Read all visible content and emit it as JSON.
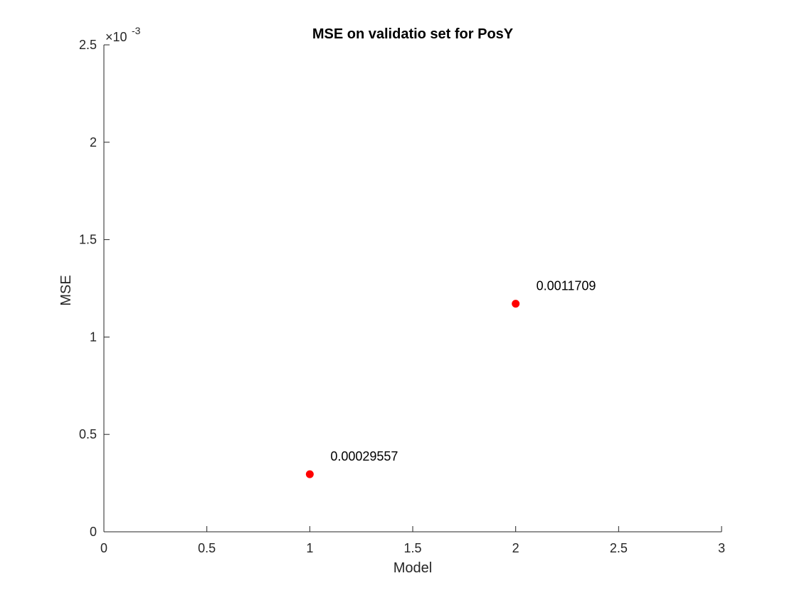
{
  "chart_data": {
    "type": "scatter",
    "title": "MSE on validatio set for PosY",
    "xlabel": "Model",
    "ylabel": "MSE",
    "xlim": [
      0,
      3
    ],
    "ylim": [
      0,
      0.0025
    ],
    "y_exponent_label": "×10",
    "y_exponent_power": "-3",
    "x_ticks": [
      0,
      0.5,
      1,
      1.5,
      2,
      2.5,
      3
    ],
    "x_tick_labels": [
      "0",
      "0.5",
      "1",
      "1.5",
      "2",
      "2.5",
      "3"
    ],
    "y_ticks": [
      0,
      0.0005,
      0.001,
      0.0015,
      0.002,
      0.0025
    ],
    "y_tick_labels": [
      "0",
      "0.5",
      "1",
      "1.5",
      "2",
      "2.5"
    ],
    "grid": false,
    "marker_color": "#ff0000",
    "points": [
      {
        "x": 1,
        "y": 0.00029557,
        "label": "0.00029557"
      },
      {
        "x": 2,
        "y": 0.0011709,
        "label": "0.0011709"
      }
    ]
  }
}
